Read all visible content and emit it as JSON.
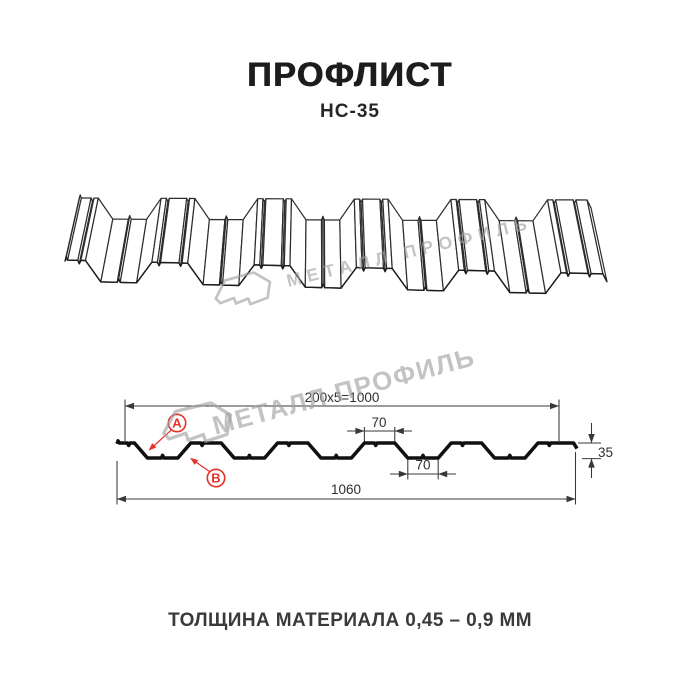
{
  "title": "ПРОФЛИСТ",
  "subtitle": "НС-35",
  "footer": {
    "text": "ТОЛЩИНА МАТЕРИАЛА 0,45 – 0,9 ММ"
  },
  "watermark": {
    "text": "МЕТАЛЛ ПРОФИЛЬ",
    "color": "#c4c4c4"
  },
  "drawing": {
    "profile_name": "НС-35",
    "dimensions": {
      "pitch_total": "200x5=1000",
      "rib_top_width": "70",
      "rib_bottom_width": "70",
      "overall_width": "1060",
      "height": "35"
    },
    "labels": {
      "outer": "A",
      "inner": "B"
    },
    "colors": {
      "section_line": "#101010",
      "thin_line": "#2d2d2d",
      "dim_line": "#383838",
      "accent_red": "#e5322b",
      "watermark_gray": "#9f9f9f"
    }
  }
}
